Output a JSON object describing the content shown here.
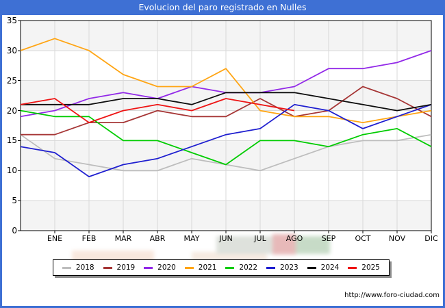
{
  "header": {
    "title": "Evolucion del paro registrado en Nulles"
  },
  "footer": {
    "url": "http://www.foro-ciudad.com"
  },
  "colors": {
    "frame_blue": "#3e70d4",
    "title_text": "#ffffff",
    "plot_band_gray": "#f4f4f4",
    "gridline": "#d9d9d9",
    "axis_border": "#000000"
  },
  "chart_data": {
    "type": "line",
    "title": "Evolucion del paro registrado en Nulles",
    "xlabel": "",
    "ylabel": "",
    "x_labels": [
      "ENE",
      "FEB",
      "MAR",
      "ABR",
      "MAY",
      "JUN",
      "JUL",
      "AGO",
      "SEP",
      "OCT",
      "NOV",
      "DIC"
    ],
    "lead_in_note": "first value of each series is drawn on the y-axis (previous December), then ENE..DIC follow at each gridline",
    "ylim": [
      0,
      35
    ],
    "y_ticks": [
      0,
      5,
      10,
      15,
      20,
      25,
      30,
      35
    ],
    "grid": true,
    "legend_position": "bottom",
    "series": [
      {
        "name": "2018",
        "color": "#bdbdbd",
        "values": [
          16,
          12,
          11,
          10,
          10,
          12,
          11,
          10,
          12,
          14,
          15,
          15,
          16
        ]
      },
      {
        "name": "2019",
        "color": "#a63636",
        "values": [
          16,
          16,
          18,
          18,
          20,
          19,
          19,
          22,
          19,
          20,
          24,
          22,
          19
        ]
      },
      {
        "name": "2020",
        "color": "#9229e8",
        "values": [
          19,
          20,
          22,
          23,
          22,
          24,
          23,
          23,
          24,
          27,
          27,
          28,
          30
        ]
      },
      {
        "name": "2021",
        "color": "#ffa514",
        "values": [
          30,
          32,
          30,
          26,
          24,
          24,
          27,
          20,
          19,
          19,
          18,
          19,
          20
        ]
      },
      {
        "name": "2022",
        "color": "#00cc00",
        "values": [
          20,
          19,
          19,
          15,
          15,
          13,
          11,
          15,
          15,
          14,
          16,
          17,
          14
        ]
      },
      {
        "name": "2023",
        "color": "#1f1fd0",
        "values": [
          14,
          13,
          9,
          11,
          12,
          14,
          16,
          17,
          21,
          20,
          17,
          19,
          21
        ]
      },
      {
        "name": "2024",
        "color": "#0d0d0d",
        "values": [
          21,
          21,
          21,
          22,
          22,
          21,
          23,
          23,
          23,
          22,
          21,
          20,
          21
        ]
      },
      {
        "name": "2025",
        "color": "#ee1414",
        "values": [
          21,
          22,
          18,
          20,
          21,
          20,
          22,
          21,
          20
        ]
      }
    ]
  }
}
